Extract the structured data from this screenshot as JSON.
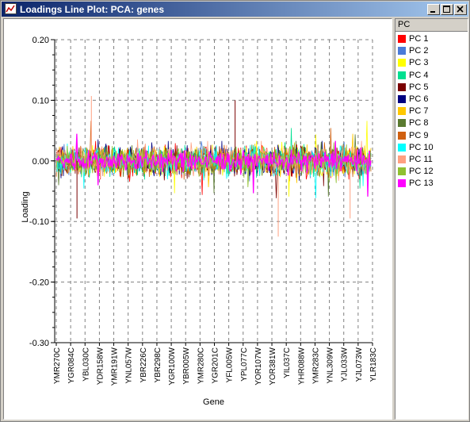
{
  "window": {
    "title": "Loadings Line Plot: PCA: genes",
    "controls": [
      "minimize-icon",
      "maximize-icon",
      "close-icon"
    ]
  },
  "legend": {
    "header": "PC",
    "items": [
      {
        "label": "PC 1",
        "color": "#ff0000"
      },
      {
        "label": "PC 2",
        "color": "#4a7bd8"
      },
      {
        "label": "PC 3",
        "color": "#ffff00"
      },
      {
        "label": "PC 4",
        "color": "#00e090"
      },
      {
        "label": "PC 5",
        "color": "#7a0000"
      },
      {
        "label": "PC 6",
        "color": "#000080"
      },
      {
        "label": "PC 7",
        "color": "#ffc800"
      },
      {
        "label": "PC 8",
        "color": "#5a7a30"
      },
      {
        "label": "PC 9",
        "color": "#d06010"
      },
      {
        "label": "PC 10",
        "color": "#00ffff"
      },
      {
        "label": "PC 11",
        "color": "#ffa080"
      },
      {
        "label": "PC 12",
        "color": "#90c030"
      },
      {
        "label": "PC 13",
        "color": "#ff00ff"
      }
    ]
  },
  "chart_data": {
    "type": "line",
    "xlabel": "Gene",
    "ylabel": "Loading",
    "ylim": [
      -0.3,
      0.2
    ],
    "yticks": [
      "0.20",
      "0.10",
      "0.00",
      "-0.10",
      "-0.20",
      "-0.30"
    ],
    "ytick_values": [
      0.2,
      0.1,
      0.0,
      -0.1,
      -0.2,
      -0.3
    ],
    "categories": [
      "YMR270C",
      "YGR084C",
      "YBL030C",
      "YDR158W",
      "YMR191W",
      "YNL057W",
      "YBR226C",
      "YBR298C",
      "YGR100W",
      "YBR005W",
      "YMR280C",
      "YGR201C",
      "YFL005W",
      "YPL077C",
      "YOR107W",
      "YOR381W",
      "YIL037C",
      "YHR088W",
      "YMR283C",
      "YNL309W",
      "YJL033W",
      "YJL073W",
      "YLR183C"
    ],
    "grid": true,
    "legend_position": "right",
    "notable_extremes": [
      {
        "near": "YBL030C",
        "value": 0.107
      },
      {
        "near": "YFL005W",
        "value": 0.1
      },
      {
        "near": "YOR381W",
        "value": -0.125
      },
      {
        "near": "YGR084C",
        "value": -0.095
      },
      {
        "near": "YJL033W",
        "value": -0.095
      }
    ]
  }
}
